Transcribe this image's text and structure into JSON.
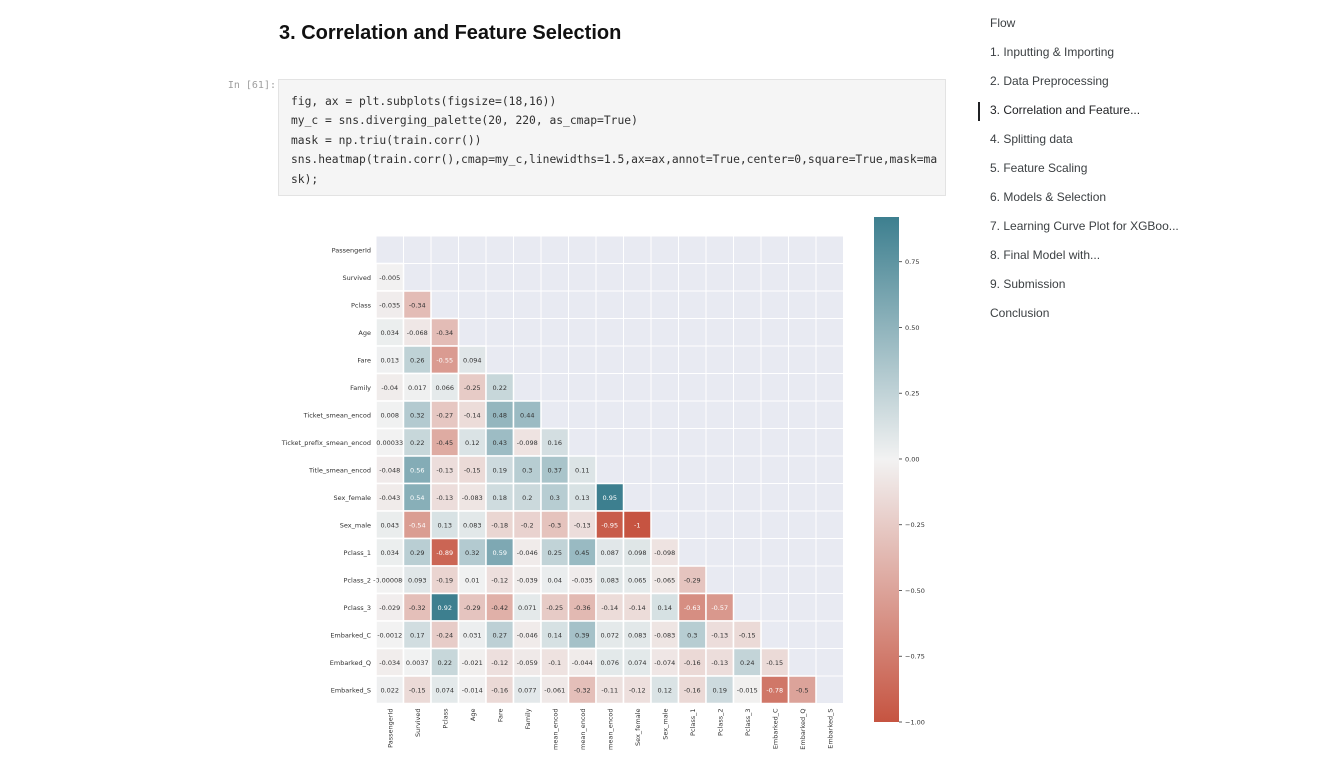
{
  "section": {
    "title": "3. Correlation and Feature Selection"
  },
  "cell": {
    "prompt": "In [61]:",
    "code_lines": [
      "fig, ax = plt.subplots(figsize=(18,16))",
      "my_c = sns.diverging_palette(20, 220, as_cmap=True)",
      "mask = np.triu(train.corr())",
      "sns.heatmap(train.corr(),cmap=my_c,linewidths=1.5,ax=ax,annot=True,center=0,square=True,mask=ma",
      "sk);"
    ]
  },
  "toc": {
    "items": [
      {
        "label": "Flow",
        "active": false
      },
      {
        "label": "1. Inputting & Importing",
        "active": false
      },
      {
        "label": "2. Data Preprocessing",
        "active": false
      },
      {
        "label": "3. Correlation and Feature...",
        "active": true
      },
      {
        "label": "4. Splitting data",
        "active": false
      },
      {
        "label": "5. Feature Scaling",
        "active": false
      },
      {
        "label": "6. Models & Selection",
        "active": false
      },
      {
        "label": "7. Learning Curve Plot for XGBoo...",
        "active": false
      },
      {
        "label": "8. Final Model with...",
        "active": false
      },
      {
        "label": "9. Submission",
        "active": false
      },
      {
        "label": "Conclusion",
        "active": false
      }
    ]
  },
  "colors": {
    "negative": "#c65441",
    "positive": "#3d7f8f",
    "center": "#f2f2f2",
    "mask_background": "#e8eaf2"
  },
  "chart_data": {
    "type": "heatmap",
    "row_labels": [
      "PassengerId",
      "Survived",
      "Pclass",
      "Age",
      "Fare",
      "Family",
      "Ticket_smean_encod",
      "Ticket_prefix_smean_encod",
      "Title_smean_encod",
      "Sex_female",
      "Sex_male",
      "Pclass_1",
      "Pclass_2",
      "Pclass_3",
      "Embarked_C",
      "Embarked_Q",
      "Embarked_S"
    ],
    "col_labels": [
      "PassengerId",
      "Survived",
      "Pclass",
      "Age",
      "Fare",
      "Family",
      "mean_encod",
      "mean_encod",
      "mean_encod",
      "Sex_female",
      "Sex_male",
      "Pclass_1",
      "Pclass_2",
      "Pclass_3",
      "Embarked_C",
      "Embarked_Q",
      "Embarked_S"
    ],
    "values": [
      [],
      [
        -0.005
      ],
      [
        -0.035,
        -0.34
      ],
      [
        0.034,
        -0.068,
        -0.34
      ],
      [
        0.013,
        0.26,
        -0.55,
        0.094
      ],
      [
        -0.04,
        0.017,
        0.066,
        -0.25,
        0.22
      ],
      [
        0.008,
        0.32,
        -0.27,
        -0.14,
        0.48,
        0.44
      ],
      [
        0.00033,
        0.22,
        -0.45,
        0.12,
        0.43,
        -0.098,
        0.16
      ],
      [
        -0.048,
        0.56,
        -0.13,
        -0.15,
        0.19,
        0.3,
        0.37,
        0.11
      ],
      [
        -0.043,
        0.54,
        -0.13,
        -0.083,
        0.18,
        0.2,
        0.3,
        0.13,
        0.95
      ],
      [
        0.043,
        -0.54,
        0.13,
        0.083,
        -0.18,
        -0.2,
        -0.3,
        -0.13,
        -0.95,
        -1
      ],
      [
        0.034,
        0.29,
        -0.89,
        0.32,
        0.59,
        -0.046,
        0.25,
        0.45,
        0.087,
        0.098,
        -0.098
      ],
      [
        -8.6e-05,
        0.093,
        -0.19,
        0.01,
        -0.12,
        -0.039,
        0.04,
        -0.035,
        0.083,
        0.065,
        -0.065,
        -0.29
      ],
      [
        -0.029,
        -0.32,
        0.92,
        -0.29,
        -0.42,
        0.071,
        -0.25,
        -0.36,
        -0.14,
        -0.14,
        0.14,
        -0.63,
        -0.57
      ],
      [
        -0.0012,
        0.17,
        -0.24,
        0.031,
        0.27,
        -0.046,
        0.14,
        0.39,
        0.072,
        0.083,
        -0.083,
        0.3,
        -0.13,
        -0.15
      ],
      [
        -0.034,
        0.0037,
        0.22,
        -0.021,
        -0.12,
        -0.059,
        -0.1,
        -0.044,
        0.076,
        0.074,
        -0.074,
        -0.16,
        -0.13,
        0.24,
        -0.15
      ],
      [
        0.022,
        -0.15,
        0.074,
        -0.014,
        -0.16,
        0.077,
        -0.061,
        -0.32,
        -0.11,
        -0.12,
        0.12,
        -0.16,
        0.19,
        -0.015,
        -0.78,
        -0.5
      ]
    ],
    "colorbar": {
      "min": -1.0,
      "max": 0.92,
      "ticks": [
        0.75,
        0.5,
        0.25,
        0.0,
        -0.25,
        -0.5,
        -0.75,
        -1.0
      ],
      "tick_labels": [
        "0.75",
        "0.50",
        "0.25",
        "0.00",
        "−0.25",
        "−0.50",
        "−0.75",
        "−1.00"
      ]
    }
  }
}
